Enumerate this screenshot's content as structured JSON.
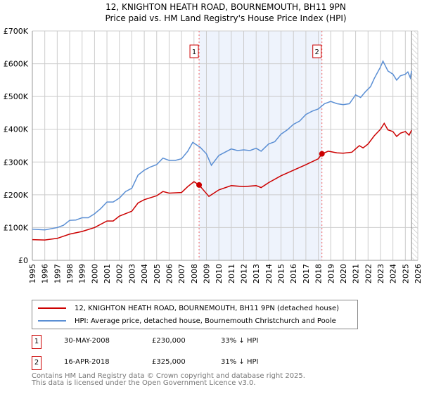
{
  "chart_data": {
    "type": "line",
    "title": "12, KNIGHTON HEATH ROAD, BOURNEMOUTH, BH11 9PN",
    "subtitle": "Price paid vs. HM Land Registry's House Price Index (HPI)",
    "xlim": [
      1995,
      2026
    ],
    "ylim": [
      0,
      700000
    ],
    "yticks": [
      {
        "v": 0,
        "label": "£0"
      },
      {
        "v": 100000,
        "label": "£100K"
      },
      {
        "v": 200000,
        "label": "£200K"
      },
      {
        "v": 300000,
        "label": "£300K"
      },
      {
        "v": 400000,
        "label": "£400K"
      },
      {
        "v": 500000,
        "label": "£500K"
      },
      {
        "v": 600000,
        "label": "£600K"
      },
      {
        "v": 700000,
        "label": "£700K"
      }
    ],
    "xticks": [
      "1995",
      "1996",
      "1997",
      "1998",
      "1999",
      "2000",
      "2001",
      "2002",
      "2003",
      "2004",
      "2005",
      "2006",
      "2007",
      "2008",
      "2009",
      "2010",
      "2011",
      "2012",
      "2013",
      "2014",
      "2015",
      "2016",
      "2017",
      "2018",
      "2019",
      "2020",
      "2021",
      "2022",
      "2023",
      "2024",
      "2025",
      "2026"
    ],
    "grid": true,
    "shaded_range": [
      2008.41,
      2018.29
    ],
    "forecast_hatch_from": 2025.5,
    "series": [
      {
        "name": "12, KNIGHTON HEATH ROAD, BOURNEMOUTH, BH11 9PN (detached house)",
        "color": "#cc0000",
        "x": [
          1995,
          1996,
          1997,
          1998,
          1999,
          2000,
          2001,
          2001.5,
          2002,
          2003,
          2003.5,
          2004,
          2005,
          2005.5,
          2006,
          2007,
          2007.5,
          2008,
          2008.41,
          2009.2,
          2010,
          2011,
          2012,
          2013,
          2013.4,
          2014,
          2015,
          2016,
          2017,
          2018,
          2018.29,
          2018.8,
          2019.5,
          2020,
          2020.7,
          2021.3,
          2021.6,
          2022,
          2022.5,
          2023,
          2023.3,
          2023.6,
          2024,
          2024.3,
          2024.6,
          2025,
          2025.3,
          2025.5
        ],
        "y": [
          63000,
          62000,
          67000,
          80000,
          88000,
          100000,
          120000,
          120000,
          135000,
          150000,
          175000,
          185000,
          197000,
          210000,
          205000,
          207000,
          225000,
          240000,
          230000,
          195000,
          215000,
          228000,
          225000,
          228000,
          222000,
          237000,
          258000,
          275000,
          292000,
          310000,
          325000,
          333000,
          328000,
          327000,
          330000,
          350000,
          343000,
          355000,
          380000,
          400000,
          418000,
          398000,
          393000,
          378000,
          388000,
          393000,
          382000,
          397000
        ]
      },
      {
        "name": "HPI: Average price, detached house, Bournemouth Christchurch and Poole",
        "color": "#5b8fd4",
        "x": [
          1995,
          1996,
          1997,
          1997.5,
          1998,
          1998.5,
          1999,
          1999.5,
          2000,
          2000.5,
          2001,
          2001.5,
          2002,
          2002.5,
          2003,
          2003.5,
          2004,
          2004.5,
          2005,
          2005.5,
          2006,
          2006.5,
          2007,
          2007.5,
          2007.9,
          2008.5,
          2009,
          2009.4,
          2009.7,
          2010,
          2010.5,
          2011,
          2011.5,
          2012,
          2012.5,
          2013,
          2013.4,
          2014,
          2014.5,
          2015,
          2015.5,
          2016,
          2016.5,
          2017,
          2017.5,
          2018,
          2018.5,
          2019,
          2019.5,
          2020,
          2020.5,
          2021,
          2021.4,
          2021.8,
          2022.2,
          2022.5,
          2023,
          2023.2,
          2023.6,
          2024,
          2024.3,
          2024.6,
          2025,
          2025.2,
          2025.4,
          2025.5
        ],
        "y": [
          95000,
          93000,
          100000,
          107000,
          122000,
          123000,
          130000,
          130000,
          142000,
          158000,
          178000,
          178000,
          190000,
          210000,
          220000,
          260000,
          275000,
          285000,
          292000,
          312000,
          305000,
          305000,
          310000,
          333000,
          360000,
          345000,
          325000,
          290000,
          305000,
          320000,
          330000,
          340000,
          335000,
          337000,
          335000,
          342000,
          333000,
          355000,
          362000,
          385000,
          398000,
          415000,
          425000,
          445000,
          455000,
          462000,
          478000,
          485000,
          478000,
          475000,
          478000,
          505000,
          497000,
          515000,
          530000,
          555000,
          590000,
          608000,
          578000,
          568000,
          550000,
          563000,
          568000,
          575000,
          557000,
          578000
        ]
      }
    ],
    "sales": [
      {
        "id": "1",
        "x": 2008.41,
        "y": 230000,
        "date": "30-MAY-2008",
        "price": "£230,000",
        "hpi": "33% ↓ HPI"
      },
      {
        "id": "2",
        "x": 2018.29,
        "y": 325000,
        "date": "16-APR-2018",
        "price": "£325,000",
        "hpi": "31% ↓ HPI"
      }
    ]
  },
  "footer": [
    "Contains HM Land Registry data © Crown copyright and database right 2025.",
    "This data is licensed under the Open Government Licence v3.0."
  ]
}
